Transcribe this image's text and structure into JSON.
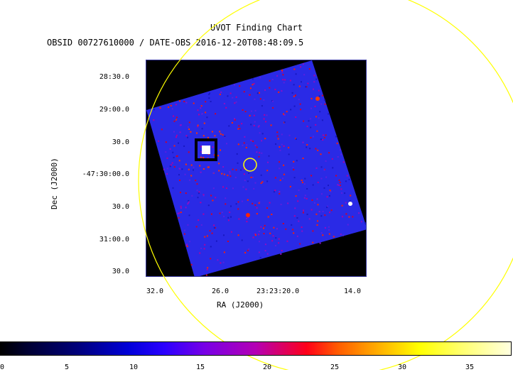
{
  "header": {
    "title": "UVOT Finding Chart",
    "subtitle": "OBSID 00727610000 / DATE-OBS 2016-12-20T08:48:09.5"
  },
  "axes": {
    "x_label": "RA (J2000)",
    "y_label": "Dec (J2000)",
    "x_ticks": [
      "32.0",
      "26.0",
      "23:23:20.0",
      "14.0"
    ],
    "y_ticks": [
      "28:30.0",
      "29:00.0",
      "30.0",
      "-47:30:00.0",
      "30.0",
      "31:00.0",
      "30.0"
    ]
  },
  "colorbar": {
    "ticks": [
      "0",
      "5",
      "10",
      "15",
      "20",
      "25",
      "30",
      "35"
    ],
    "range": [
      0,
      37
    ]
  },
  "colors": {
    "image_background": "#2a2ae6",
    "overlay_circle": "#ffff00",
    "source_hot": "#ffffff",
    "source_warm": "#ff2200"
  }
}
